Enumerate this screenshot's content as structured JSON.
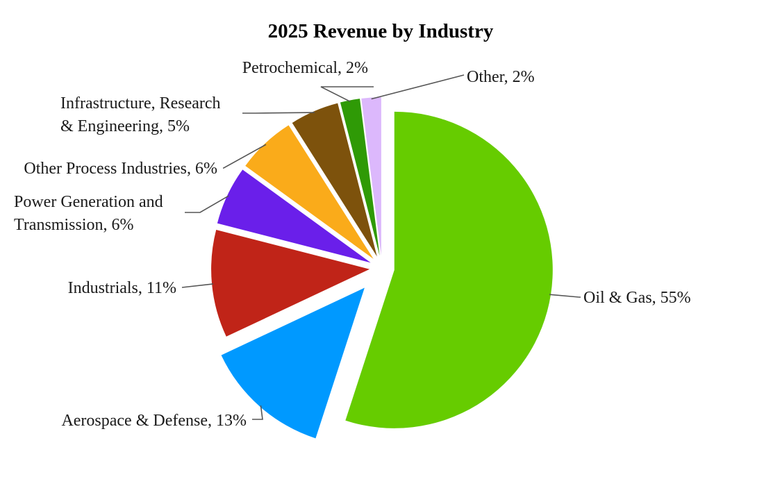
{
  "chart_data": {
    "type": "pie",
    "title": "2025 Revenue by Industry",
    "start_angle_deg": 0,
    "direction": "clockwise",
    "slices": [
      {
        "label": "Oil & Gas",
        "value": 55,
        "display": "Oil & Gas, 55%",
        "color": "#66cc00"
      },
      {
        "label": "Aerospace & Defense",
        "value": 13,
        "display": "Aerospace & Defense, 13%",
        "color": "#0099ff"
      },
      {
        "label": "Industrials",
        "value": 11,
        "display": "Industrials, 11%",
        "color": "#c02418"
      },
      {
        "label": "Power Generation and Transmission",
        "value": 6,
        "display": [
          "Power Generation and",
          "Transmission, 6%"
        ],
        "color": "#6a1fea"
      },
      {
        "label": "Other Process Industries",
        "value": 6,
        "display": "Other Process Industries, 6%",
        "color": "#faab1a"
      },
      {
        "label": "Infrastructure, Research & Engineering",
        "value": 5,
        "display": [
          "Infrastructure, Research",
          "& Engineering, 5%"
        ],
        "color": "#7d520c"
      },
      {
        "label": "Petrochemical",
        "value": 2,
        "display": "Petrochemical, 2%",
        "color": "#2f9a06"
      },
      {
        "label": "Other",
        "value": 2,
        "display": "Other, 2%",
        "color": "#dcb8fc"
      }
    ]
  }
}
